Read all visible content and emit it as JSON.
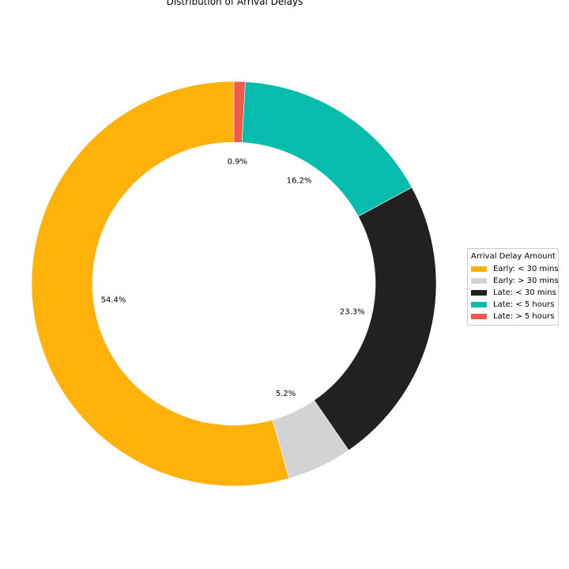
{
  "chart_data": {
    "type": "pie",
    "donut": true,
    "title": "Distribution of Arrival Delays",
    "legend_title": "Arrival Delay Amount",
    "legend_placement": "right",
    "start_angle_deg": 90,
    "direction": "counterclockwise",
    "slices": [
      {
        "name": "Early: < 30 mins",
        "value": 54.4,
        "label": "54.4%",
        "color": "#FFB20A"
      },
      {
        "name": "Early: > 30 mins",
        "value": 5.2,
        "label": "5.2%",
        "color": "#D3D3D5"
      },
      {
        "name": "Late: < 30 mins",
        "value": 23.3,
        "label": "23.3%",
        "color": "#222021"
      },
      {
        "name": "Late: < 5 hours",
        "value": 16.2,
        "label": "16.2%",
        "color": "#06BCAD"
      },
      {
        "name": "Late: > 5 hours",
        "value": 0.9,
        "label": "0.9%",
        "color": "#EF5B4E"
      }
    ]
  }
}
